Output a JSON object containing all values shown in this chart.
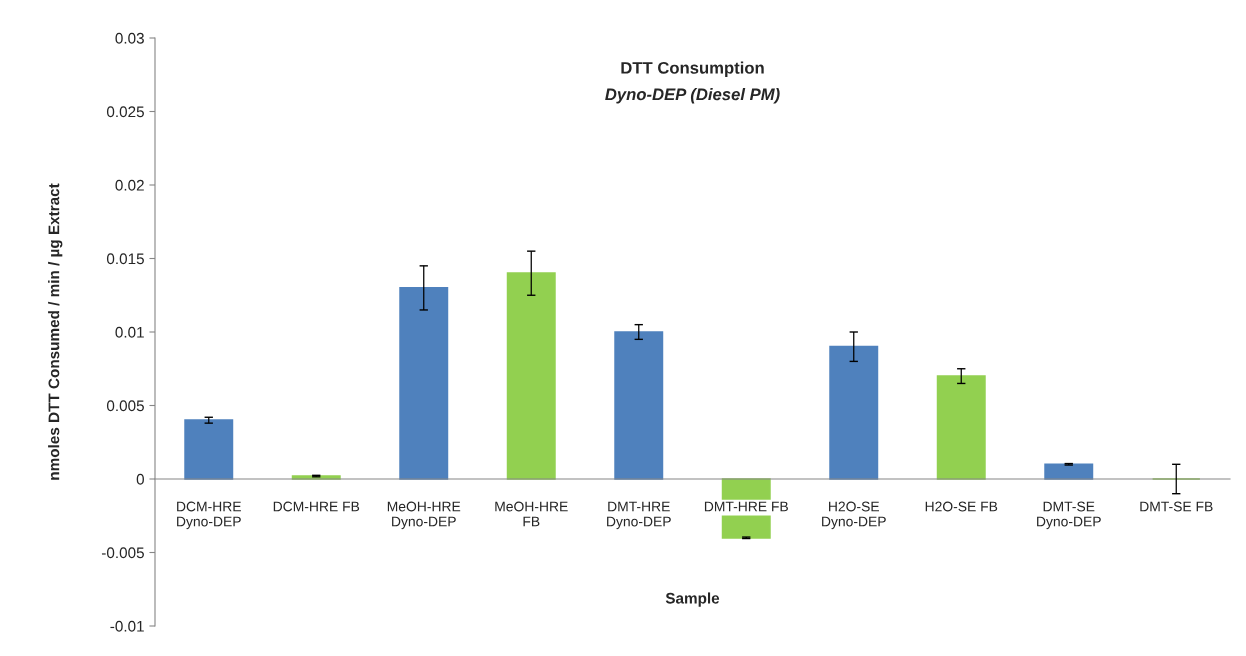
{
  "chart_data": {
    "type": "bar",
    "title": "DTT Consumption",
    "subtitle": "Dyno-DEP (Diesel PM)",
    "xlabel": "Sample",
    "ylabel": "nmoles DTT Consumed / min / µg Extract",
    "categories": [
      "DCM-HRE\nDyno-DEP",
      "DCM-HRE FB",
      "MeOH-HRE\nDyno-DEP",
      "MeOH-HRE\nFB",
      "DMT-HRE\nDyno-DEP",
      "DMT-HRE FB",
      "H2O-SE\nDyno-DEP",
      "H2O-SE FB",
      "DMT-SE\nDyno-DEP",
      "DMT-SE FB"
    ],
    "values": [
      0.004,
      0.0002,
      0.013,
      0.014,
      0.01,
      -0.004,
      0.009,
      0.007,
      0.001,
      0
    ],
    "errors": [
      0.0002,
      5e-05,
      0.0015,
      0.0015,
      0.0005,
      5e-05,
      0.001,
      0.0005,
      5e-05,
      0.001
    ],
    "colors": [
      "#4f81bd",
      "#92d050",
      "#4f81bd",
      "#92d050",
      "#4f81bd",
      "#92d050",
      "#4f81bd",
      "#92d050",
      "#4f81bd",
      "#92d050"
    ],
    "ylim": [
      -0.01,
      0.03
    ],
    "yticks": [
      -0.01,
      -0.005,
      0,
      0.005,
      0.01,
      0.015,
      0.02,
      0.025,
      0.03
    ],
    "grid": false,
    "legend": false
  }
}
